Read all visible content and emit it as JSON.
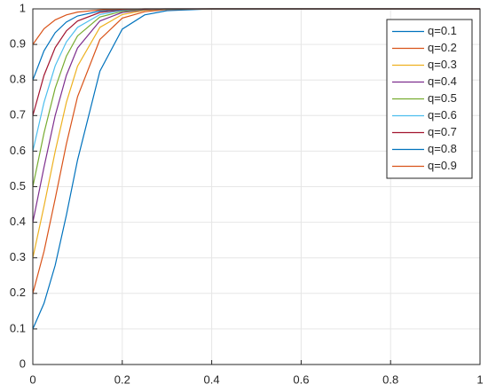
{
  "chart_data": {
    "type": "line",
    "x": [
      0,
      0.025,
      0.05,
      0.075,
      0.1,
      0.15,
      0.2,
      0.25,
      0.3,
      0.4,
      0.6,
      0.8,
      1
    ],
    "series": [
      {
        "name": "q=0.1",
        "color": "#0072BD",
        "values": [
          0.1,
          0.172,
          0.279,
          0.42,
          0.575,
          0.825,
          0.943,
          0.983,
          0.995,
          1,
          1,
          1,
          1
        ]
      },
      {
        "name": "q=0.2",
        "color": "#D95319",
        "values": [
          0.2,
          0.318,
          0.466,
          0.62,
          0.753,
          0.914,
          0.974,
          0.992,
          0.998,
          1,
          1,
          1,
          1
        ]
      },
      {
        "name": "q=0.3",
        "color": "#EDB120",
        "values": [
          0.3,
          0.445,
          0.599,
          0.737,
          0.839,
          0.948,
          0.984,
          0.996,
          0.999,
          1,
          1,
          1,
          1
        ]
      },
      {
        "name": "q=0.4",
        "color": "#7E2F8E",
        "values": [
          0.4,
          0.555,
          0.7,
          0.813,
          0.89,
          0.966,
          0.99,
          0.997,
          0.999,
          1,
          1,
          1,
          1
        ]
      },
      {
        "name": "q=0.5",
        "color": "#77AC30",
        "values": [
          0.5,
          0.651,
          0.777,
          0.867,
          0.924,
          0.977,
          0.993,
          0.998,
          0.999,
          1,
          1,
          1,
          1
        ]
      },
      {
        "name": "q=0.6",
        "color": "#4DBEEE",
        "values": [
          0.6,
          0.737,
          0.84,
          0.907,
          0.948,
          0.984,
          0.996,
          0.999,
          1,
          1,
          1,
          1,
          1
        ]
      },
      {
        "name": "q=0.7",
        "color": "#A2142F",
        "values": [
          0.7,
          0.813,
          0.891,
          0.938,
          0.966,
          0.99,
          0.997,
          0.999,
          1,
          1,
          1,
          1,
          1
        ]
      },
      {
        "name": "q=0.8",
        "color": "#0072BD",
        "values": [
          0.8,
          0.882,
          0.933,
          0.963,
          0.98,
          0.994,
          0.998,
          1,
          1,
          1,
          1,
          1,
          1
        ]
      },
      {
        "name": "q=0.9",
        "color": "#D95319",
        "values": [
          0.9,
          0.944,
          0.969,
          0.983,
          0.991,
          0.997,
          0.999,
          1,
          1,
          1,
          1,
          1,
          1
        ]
      }
    ],
    "xlim": [
      0,
      1
    ],
    "xticks": [
      0,
      0.2,
      0.4,
      0.6,
      0.8,
      1
    ],
    "ylim": [
      0,
      1
    ],
    "yticks": [
      0,
      0.1,
      0.2,
      0.3,
      0.4,
      0.5,
      0.6,
      0.7,
      0.8,
      0.9,
      1
    ],
    "grid": true,
    "legend": "top-right"
  }
}
